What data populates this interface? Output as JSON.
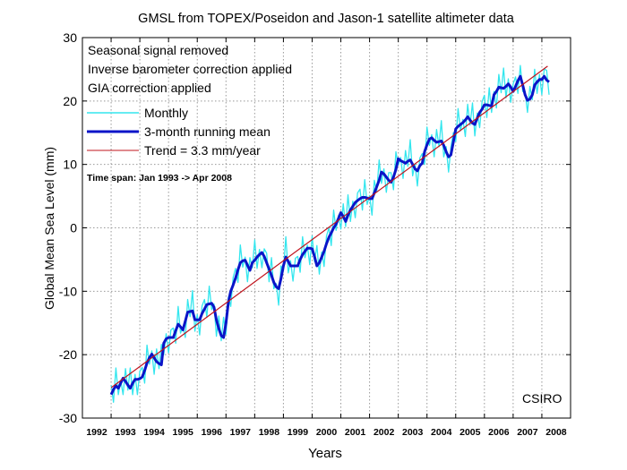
{
  "chart_data": {
    "type": "line",
    "title": "GMSL from TOPEX/Poseidon and Jason-1 satellite altimeter data",
    "xlabel": "Years",
    "ylabel": "Global Mean Sea Level (mm)",
    "xlim": [
      1992,
      2009
    ],
    "ylim": [
      -30,
      30
    ],
    "grid": true,
    "x_tick_labels": [
      "1992",
      "1993",
      "1994",
      "1995",
      "1996",
      "1997",
      "1998",
      "1999",
      "2000",
      "2001",
      "2002",
      "2003",
      "2004",
      "2005",
      "2006",
      "2007",
      "2008"
    ],
    "y_ticks": [
      -30,
      -20,
      -10,
      0,
      10,
      20,
      30
    ],
    "annotations": [
      "Seasonal signal removed",
      "Inverse barometer correction applied",
      "GIA correction applied"
    ],
    "time_span": "Time span: Jan 1993 -> Apr 2008",
    "credit": "CSIRO",
    "legend_placement": "top-left",
    "x_start": 1993.0,
    "x_step_months": 1,
    "series": [
      {
        "name": "Monthly",
        "color": "#33e6ee",
        "values": [
          -24.8,
          -27.5,
          -22.1,
          -26.3,
          -24.0,
          -26.3,
          -22.2,
          -25.6,
          -22.1,
          -26.3,
          -23.1,
          -26.3,
          -22.6,
          -22.0,
          -24.5,
          -18.5,
          -21.5,
          -19.4,
          -23.1,
          -19.1,
          -22.2,
          -18.4,
          -20.0,
          -16.7,
          -19.7,
          -16.1,
          -15.8,
          -18.2,
          -12.4,
          -16.6,
          -15.6,
          -17.3,
          -11.3,
          -14.0,
          -9.9,
          -16.3,
          -13.7,
          -16.9,
          -12.3,
          -11.3,
          -14.1,
          -9.2,
          -12.9,
          -12.0,
          -17.1,
          -13.9,
          -17.8,
          -14.1,
          -16.8,
          -10.9,
          -12.4,
          -7.8,
          -6.4,
          -8.6,
          -2.7,
          -6.2,
          -4.6,
          -8.5,
          -4.7,
          -6.3,
          -1.9,
          -6.4,
          -3.4,
          -6.3,
          -3.3,
          -4.0,
          -8.5,
          -4.7,
          -9.6,
          -8.8,
          -12.2,
          -6.0,
          -6.8,
          -1.4,
          -7.1,
          -5.2,
          -8.4,
          -4.8,
          -4.5,
          -7.0,
          -1.4,
          -4.7,
          -2.7,
          -5.8,
          -1.3,
          -5.3,
          -2.8,
          -7.3,
          -3.8,
          -6.1,
          -1.3,
          0.0,
          -2.8,
          2.8,
          -0.4,
          2.0,
          -0.2,
          3.8,
          0.2,
          5.2,
          1.0,
          4.2,
          1.6,
          5.5,
          6.1,
          2.8,
          7.6,
          3.7,
          5.1,
          2.0,
          7.5,
          5.7,
          10.7,
          7.0,
          9.3,
          5.6,
          8.7,
          8.7,
          6.0,
          12.0,
          9.9,
          11.1,
          7.8,
          12.2,
          9.7,
          13.9,
          8.2,
          10.1,
          6.6,
          11.0,
          11.7,
          10.0,
          15.9,
          13.0,
          14.7,
          11.2,
          15.5,
          12.8,
          16.9,
          11.2,
          12.8,
          8.8,
          12.7,
          15.0,
          13.6,
          18.8,
          15.3,
          17.1,
          14.4,
          19.5,
          16.2,
          19.7,
          14.5,
          18.1,
          15.8,
          19.9,
          20.9,
          17.4,
          22.1,
          18.2,
          21.5,
          18.9,
          24.2,
          21.3,
          25.2,
          20.5,
          23.5,
          19.8,
          22.7,
          23.8,
          21.2,
          25.6,
          21.5,
          21.5,
          18.2,
          22.3,
          20.2,
          25.0,
          21.2,
          24.2,
          21.0,
          25.1,
          24.8,
          21.0
        ]
      },
      {
        "name": "3-month running mean",
        "color": "#0a14c8",
        "values": [
          -26.3,
          -25.5,
          -24.9,
          -25.3,
          -24.5,
          -23.7,
          -24.2,
          -24.8,
          -25.3,
          -24.5,
          -23.9,
          -23.9,
          -23.8,
          -23.5,
          -22.5,
          -21.3,
          -20.5,
          -19.9,
          -20.5,
          -21.1,
          -21.4,
          -21.6,
          -18.2,
          -17.5,
          -17.3,
          -17.3,
          -17.3,
          -16.2,
          -15.2,
          -15.6,
          -16.1,
          -14.7,
          -13.3,
          -13.2,
          -13.1,
          -14.5,
          -14.5,
          -14.5,
          -13.5,
          -12.8,
          -12.1,
          -12.0,
          -11.9,
          -12.5,
          -14.5,
          -15.9,
          -17.0,
          -17.3,
          -15.0,
          -11.7,
          -10.0,
          -9.0,
          -7.9,
          -6.6,
          -5.5,
          -5.2,
          -5.1,
          -5.9,
          -6.7,
          -5.5,
          -5.1,
          -4.6,
          -4.2,
          -3.9,
          -4.5,
          -5.5,
          -6.5,
          -7.5,
          -8.6,
          -9.3,
          -9.6,
          -8.0,
          -6.0,
          -4.6,
          -5.3,
          -6.0,
          -6.0,
          -6.0,
          -6.0,
          -5.0,
          -4.2,
          -3.7,
          -3.2,
          -3.2,
          -3.3,
          -4.5,
          -6.0,
          -5.5,
          -4.6,
          -3.7,
          -2.5,
          -1.5,
          -0.8,
          0.0,
          0.6,
          1.5,
          2.4,
          1.8,
          1.0,
          2.0,
          2.8,
          3.4,
          4.0,
          4.3,
          4.6,
          4.8,
          4.8,
          4.7,
          4.6,
          4.6,
          5.5,
          6.5,
          7.5,
          8.8,
          8.5,
          8.0,
          7.5,
          7.2,
          8.0,
          9.2,
          10.9,
          10.6,
          10.4,
          10.2,
          10.5,
          10.7,
          10.0,
          9.3,
          9.0,
          9.8,
          10.2,
          12.0,
          13.1,
          14.0,
          14.2,
          13.8,
          13.5,
          13.6,
          13.7,
          13.0,
          12.0,
          11.2,
          11.5,
          13.5,
          15.6,
          16.0,
          16.3,
          16.6,
          17.0,
          17.5,
          17.0,
          16.5,
          16.3,
          17.3,
          18.2,
          18.7,
          19.4,
          19.4,
          19.3,
          19.2,
          21.0,
          21.5,
          22.2,
          22.1,
          22.0,
          22.3,
          22.7,
          22.2,
          21.5,
          22.3,
          23.2,
          23.9,
          22.5,
          21.0,
          20.1,
          20.3,
          21.0,
          22.5,
          23.0,
          23.4,
          23.4,
          23.9,
          23.3,
          23.0
        ]
      },
      {
        "name": "Trend = 3.3 mm/year",
        "color": "#c0141e",
        "x": [
          1993.0,
          2008.2
        ],
        "values": [
          -25.2,
          25.5
        ]
      }
    ]
  }
}
